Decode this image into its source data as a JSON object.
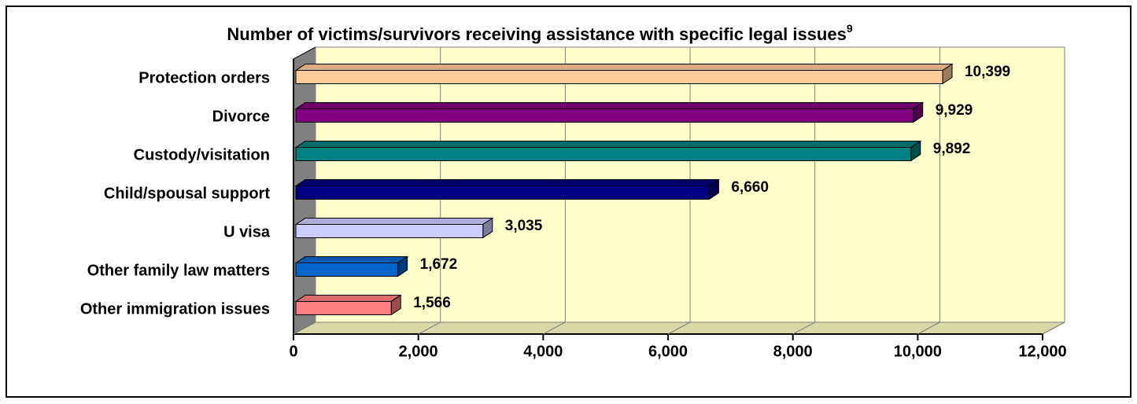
{
  "chart_data": {
    "type": "bar",
    "orientation": "horizontal",
    "title": "Number of victims/survivors receiving assistance with specific legal issues",
    "title_superscript": "9",
    "categories": [
      "Protection orders",
      "Divorce",
      "Custody/visitation",
      "Child/spousal support",
      "U visa",
      "Other family law matters",
      "Other immigration issues"
    ],
    "values": [
      10399,
      9929,
      9892,
      6660,
      3035,
      1672,
      1566
    ],
    "value_labels": [
      "10,399",
      "9,929",
      "9,892",
      "6,660",
      "3,035",
      "1,672",
      "1,566"
    ],
    "colors": [
      "#FFCC99",
      "#800080",
      "#008080",
      "#000080",
      "#CCCCFF",
      "#0066CC",
      "#FF8080"
    ],
    "xlim": [
      0,
      12000
    ],
    "xticks": [
      0,
      {
        "value": 2000,
        "label": "2,000"
      },
      {
        "value": 4000,
        "label": "4,000"
      },
      {
        "value": 6000,
        "label": "6,000"
      },
      {
        "value": 8000,
        "label": "8,000"
      },
      {
        "value": 10000,
        "label": "10,000"
      },
      {
        "value": 12000,
        "label": "12,000"
      }
    ],
    "grid": true
  }
}
